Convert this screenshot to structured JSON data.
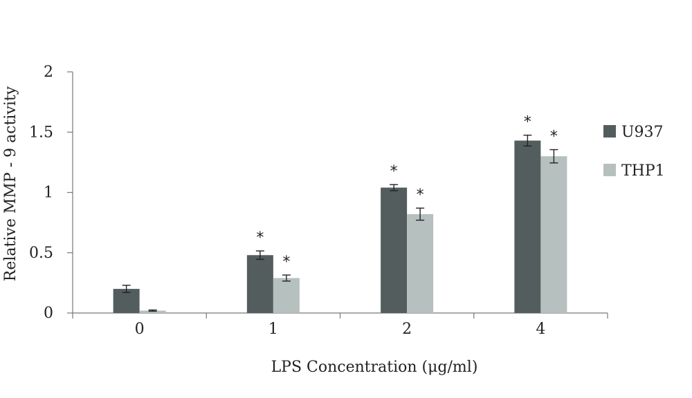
{
  "chart_data": {
    "type": "bar",
    "title": "",
    "xlabel": "LPS Concentration (μg/ml)",
    "ylabel": "Relative MMP - 9 activity",
    "categories": [
      "0",
      "1",
      "2",
      "4"
    ],
    "ylim": [
      0,
      2
    ],
    "yticks": [
      "0",
      "0.5",
      "1",
      "1.5",
      "2"
    ],
    "legend_position": "right",
    "series": [
      {
        "name": "U937",
        "color": "#545d5d",
        "values": [
          0.2,
          0.48,
          1.04,
          1.43
        ],
        "errors": [
          0.03,
          0.035,
          0.025,
          0.045
        ],
        "significance": [
          "",
          "*",
          "*",
          "*"
        ]
      },
      {
        "name": "THP1",
        "color": "#b6c0be",
        "values": [
          0.02,
          0.29,
          0.82,
          1.3
        ],
        "errors": [
          0.005,
          0.025,
          0.05,
          0.055
        ],
        "significance": [
          "",
          "*",
          "*",
          "*"
        ]
      }
    ]
  }
}
